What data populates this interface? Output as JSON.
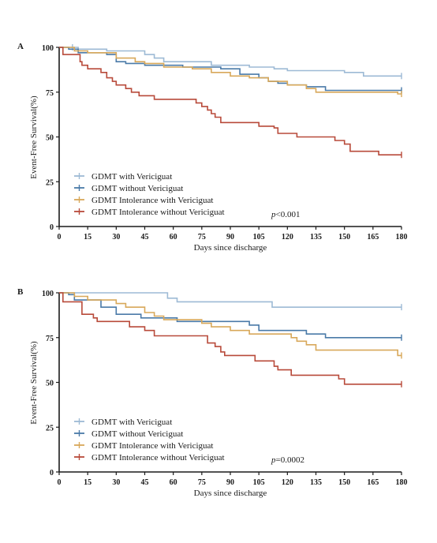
{
  "figure": {
    "panels": [
      {
        "label": "A",
        "ylabel": "Event-Free Survival(%)",
        "xlabel": "Days since discharge",
        "p_prefix": "p",
        "p_suffix": "<0.001"
      },
      {
        "label": "B",
        "ylabel": "Event-Free Survival(%)",
        "xlabel": "Days since discharge",
        "p_prefix": "p",
        "p_suffix": "=0.0002"
      }
    ]
  },
  "colors": {
    "gdmt_with_vericiguat": "#9dbad5",
    "gdmt_without_vericiguat": "#4a7aa8",
    "intolerance_with_vericiguat": "#d8a85a",
    "intolerance_without_vericiguat": "#b84a3a",
    "axis": "#1a1a1a"
  },
  "chart_data": [
    {
      "type": "line",
      "panel": "A",
      "xlabel": "Days since discharge",
      "ylabel": "Event-Free Survival(%)",
      "xlim": [
        0,
        180
      ],
      "ylim": [
        0,
        100
      ],
      "xticks": [
        0,
        15,
        30,
        45,
        60,
        75,
        90,
        105,
        120,
        135,
        150,
        165,
        180
      ],
      "yticks": [
        0,
        25,
        50,
        75,
        100
      ],
      "legend": "bottom-left",
      "annotation": "p<0.001",
      "series": [
        {
          "name": "GDMT with Vericiguat",
          "color_key": "gdmt_with_vericiguat",
          "points": [
            [
              0,
              100
            ],
            [
              10,
              99
            ],
            [
              25,
              98
            ],
            [
              45,
              96
            ],
            [
              50,
              94
            ],
            [
              55,
              92
            ],
            [
              80,
              90
            ],
            [
              100,
              89
            ],
            [
              113,
              88
            ],
            [
              120,
              87
            ],
            [
              150,
              86
            ],
            [
              160,
              84
            ],
            [
              180,
              84
            ]
          ],
          "censor": [
            7,
            180
          ]
        },
        {
          "name": "GDMT without Vericiguat",
          "color_key": "gdmt_without_vericiguat",
          "points": [
            [
              0,
              100
            ],
            [
              5,
              99
            ],
            [
              10,
              97
            ],
            [
              25,
              96
            ],
            [
              30,
              92
            ],
            [
              35,
              91
            ],
            [
              45,
              90
            ],
            [
              65,
              89
            ],
            [
              85,
              88
            ],
            [
              95,
              85
            ],
            [
              105,
              83
            ],
            [
              110,
              81
            ],
            [
              115,
              80
            ],
            [
              120,
              79
            ],
            [
              130,
              78
            ],
            [
              140,
              76
            ],
            [
              160,
              76
            ],
            [
              180,
              76
            ]
          ],
          "censor": [
            180
          ]
        },
        {
          "name": "GDMT Intolerance with Vericiguat",
          "color_key": "intolerance_with_vericiguat",
          "points": [
            [
              0,
              100
            ],
            [
              8,
              98
            ],
            [
              15,
              97
            ],
            [
              30,
              94
            ],
            [
              40,
              92
            ],
            [
              45,
              91
            ],
            [
              55,
              89
            ],
            [
              70,
              88
            ],
            [
              80,
              86
            ],
            [
              90,
              84
            ],
            [
              100,
              83
            ],
            [
              110,
              81
            ],
            [
              120,
              79
            ],
            [
              130,
              77
            ],
            [
              135,
              75
            ],
            [
              155,
              75
            ],
            [
              175,
              75
            ],
            [
              178,
              74
            ],
            [
              180,
              74
            ]
          ],
          "censor": [
            180
          ]
        },
        {
          "name": "GDMT Intolerance without Vericiguat",
          "color_key": "intolerance_without_vericiguat",
          "points": [
            [
              0,
              100
            ],
            [
              2,
              96
            ],
            [
              10,
              96
            ],
            [
              11,
              92
            ],
            [
              12,
              90
            ],
            [
              15,
              88
            ],
            [
              22,
              86
            ],
            [
              25,
              83
            ],
            [
              28,
              81
            ],
            [
              30,
              79
            ],
            [
              35,
              77
            ],
            [
              38,
              75
            ],
            [
              42,
              73
            ],
            [
              50,
              71
            ],
            [
              70,
              71
            ],
            [
              72,
              69
            ],
            [
              75,
              67
            ],
            [
              78,
              65
            ],
            [
              80,
              63
            ],
            [
              82,
              61
            ],
            [
              85,
              58
            ],
            [
              100,
              58
            ],
            [
              105,
              56
            ],
            [
              113,
              55
            ],
            [
              115,
              52
            ],
            [
              125,
              50
            ],
            [
              140,
              50
            ],
            [
              145,
              48
            ],
            [
              150,
              46
            ],
            [
              153,
              42
            ],
            [
              165,
              42
            ],
            [
              168,
              40
            ],
            [
              178,
              40
            ],
            [
              180,
              40
            ]
          ],
          "censor": [
            180
          ]
        }
      ]
    },
    {
      "type": "line",
      "panel": "B",
      "xlabel": "Days since discharge",
      "ylabel": "Event-Free Survival(%)",
      "xlim": [
        0,
        180
      ],
      "ylim": [
        0,
        100
      ],
      "xticks": [
        0,
        15,
        30,
        45,
        60,
        75,
        90,
        105,
        120,
        135,
        150,
        165,
        180
      ],
      "yticks": [
        0,
        25,
        50,
        75,
        100
      ],
      "legend": "bottom-left",
      "annotation": "p=0.0002",
      "series": [
        {
          "name": "GDMT with Vericiguat",
          "color_key": "gdmt_with_vericiguat",
          "points": [
            [
              0,
              100
            ],
            [
              55,
              100
            ],
            [
              57,
              97
            ],
            [
              62,
              95
            ],
            [
              110,
              95
            ],
            [
              112,
              92
            ],
            [
              180,
              92
            ]
          ],
          "censor": [
            180
          ]
        },
        {
          "name": "GDMT without Vericiguat",
          "color_key": "gdmt_without_vericiguat",
          "points": [
            [
              0,
              100
            ],
            [
              5,
              99
            ],
            [
              8,
              96
            ],
            [
              20,
              96
            ],
            [
              22,
              92
            ],
            [
              28,
              92
            ],
            [
              30,
              88
            ],
            [
              40,
              88
            ],
            [
              43,
              86
            ],
            [
              60,
              86
            ],
            [
              62,
              84
            ],
            [
              90,
              84
            ],
            [
              100,
              82
            ],
            [
              105,
              79
            ],
            [
              125,
              79
            ],
            [
              130,
              77
            ],
            [
              140,
              75
            ],
            [
              180,
              75
            ]
          ],
          "censor": [
            180
          ]
        },
        {
          "name": "GDMT Intolerance with Vericiguat",
          "color_key": "intolerance_with_vericiguat",
          "points": [
            [
              0,
              100
            ],
            [
              8,
              98
            ],
            [
              15,
              96
            ],
            [
              30,
              94
            ],
            [
              35,
              92
            ],
            [
              45,
              89
            ],
            [
              50,
              87
            ],
            [
              55,
              85
            ],
            [
              70,
              85
            ],
            [
              75,
              83
            ],
            [
              80,
              81
            ],
            [
              90,
              79
            ],
            [
              95,
              79
            ],
            [
              100,
              77
            ],
            [
              120,
              77
            ],
            [
              122,
              75
            ],
            [
              125,
              73
            ],
            [
              130,
              71
            ],
            [
              135,
              68
            ],
            [
              170,
              68
            ],
            [
              178,
              65
            ],
            [
              180,
              65
            ]
          ],
          "censor": [
            180
          ]
        },
        {
          "name": "GDMT Intolerance without Vericiguat",
          "color_key": "intolerance_without_vericiguat",
          "points": [
            [
              0,
              100
            ],
            [
              2,
              95
            ],
            [
              10,
              95
            ],
            [
              12,
              88
            ],
            [
              18,
              86
            ],
            [
              20,
              84
            ],
            [
              35,
              84
            ],
            [
              37,
              81
            ],
            [
              45,
              79
            ],
            [
              50,
              76
            ],
            [
              75,
              76
            ],
            [
              78,
              72
            ],
            [
              82,
              70
            ],
            [
              85,
              67
            ],
            [
              87,
              65
            ],
            [
              100,
              65
            ],
            [
              103,
              62
            ],
            [
              112,
              62
            ],
            [
              113,
              59
            ],
            [
              115,
              57
            ],
            [
              120,
              57
            ],
            [
              122,
              54
            ],
            [
              145,
              54
            ],
            [
              147,
              52
            ],
            [
              150,
              49
            ],
            [
              180,
              49
            ]
          ],
          "censor": [
            180
          ]
        }
      ]
    }
  ]
}
